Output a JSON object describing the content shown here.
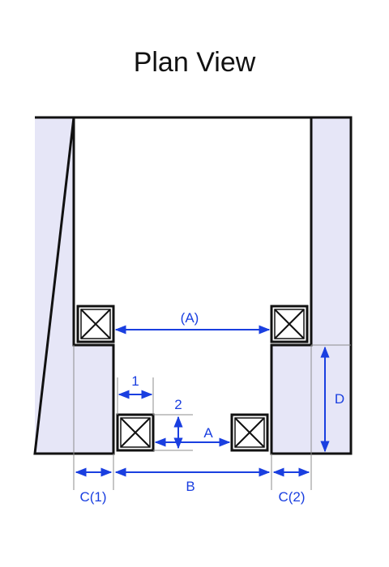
{
  "title": "Plan View",
  "colors": {
    "wall_fill": "#e6e6f7",
    "outline": "#111111",
    "dimension": "#1a3fe0",
    "leader": "#8c8c8c"
  },
  "labels": {
    "dim_A_paren": "(A)",
    "dim_A": "A",
    "dim_B": "B",
    "dim_C1": "C(1)",
    "dim_C2": "C(2)",
    "dim_D": "D",
    "dim_1": "1",
    "dim_2": "2"
  },
  "icons": {
    "post": "square-with-cross"
  }
}
